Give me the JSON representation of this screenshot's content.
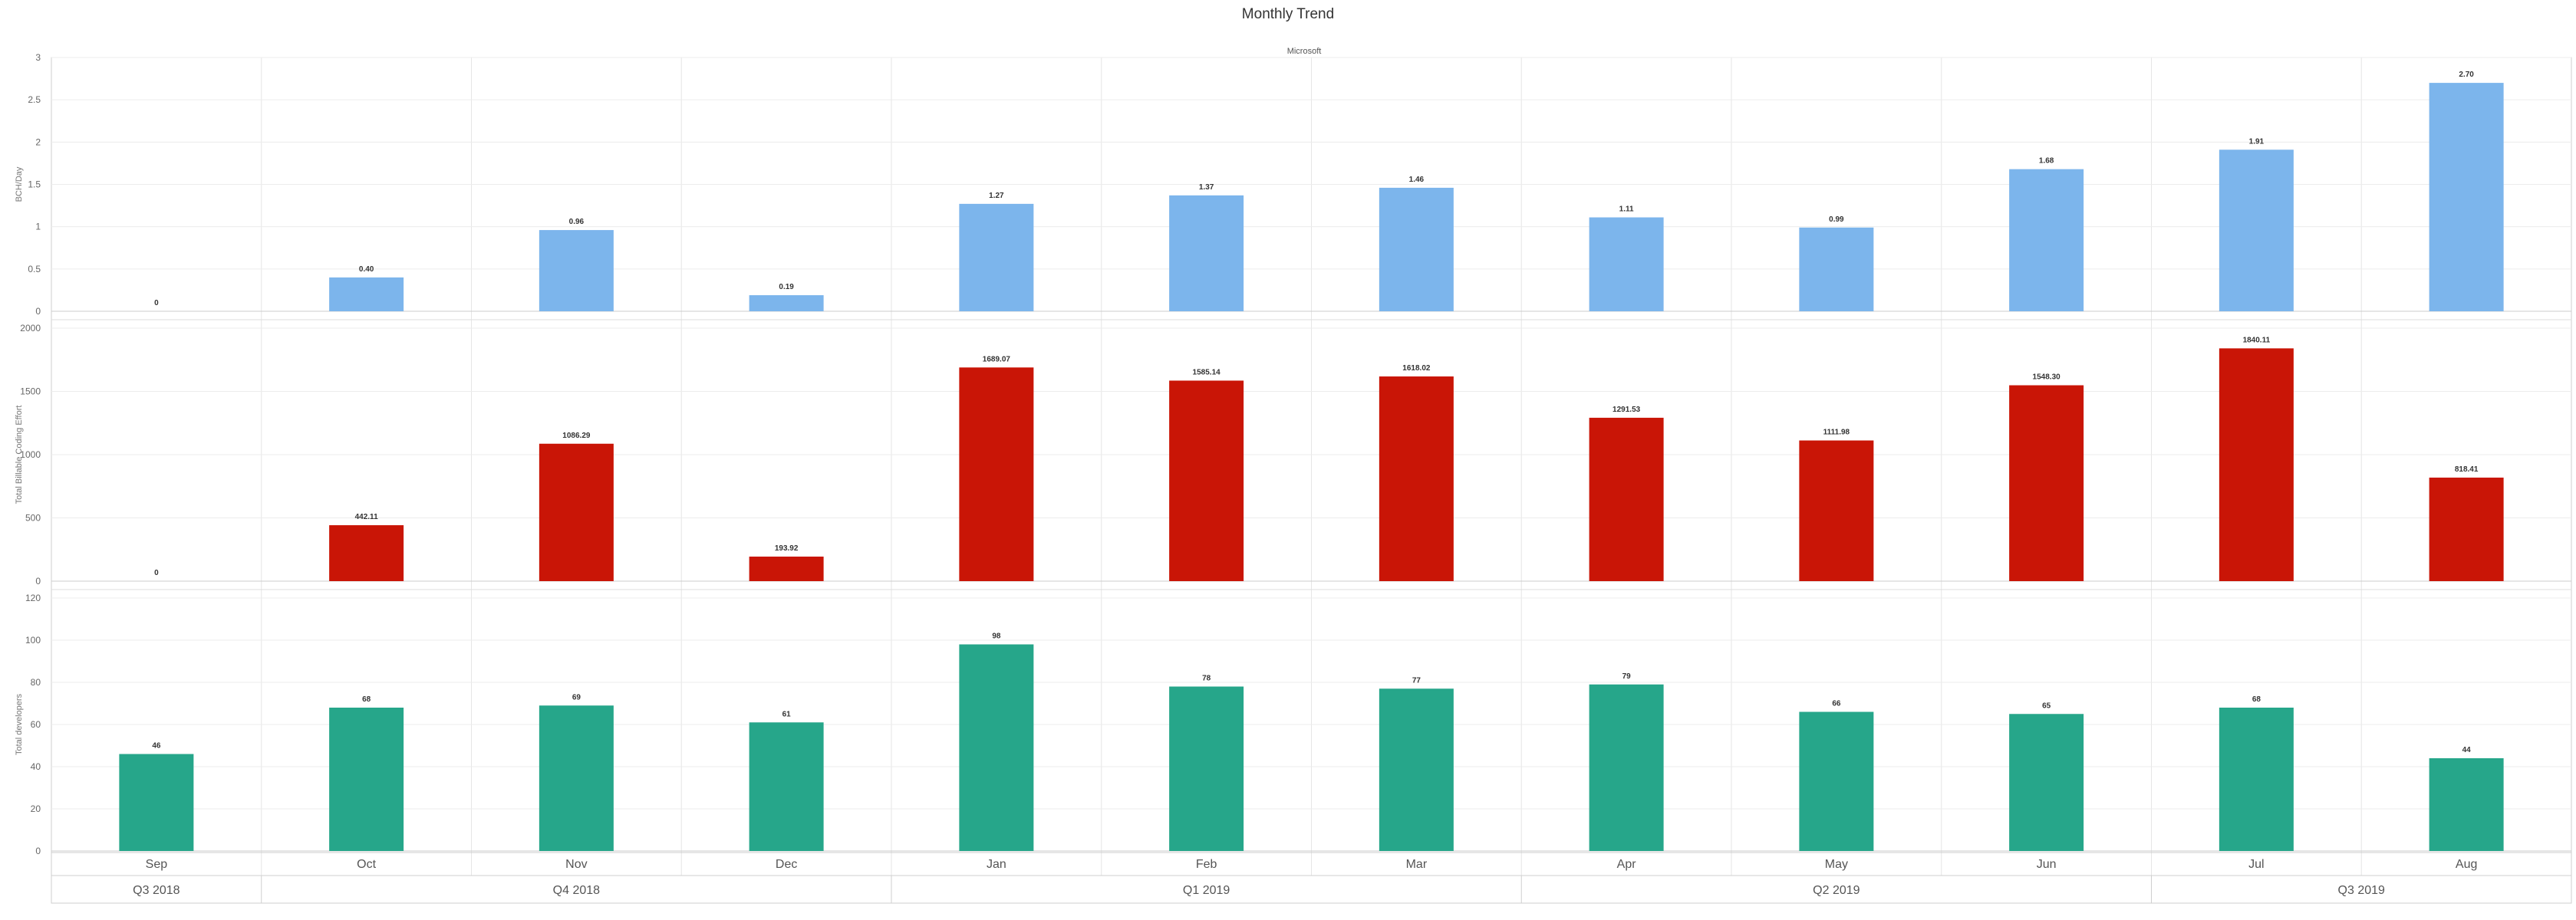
{
  "chart_data": {
    "type": "bar",
    "title": "Monthly Trend",
    "subtitle": "Microsoft",
    "categories": [
      "Sep",
      "Oct",
      "Nov",
      "Dec",
      "Jan",
      "Feb",
      "Mar",
      "Apr",
      "May",
      "Jun",
      "Jul",
      "Aug"
    ],
    "quarters": [
      {
        "label": "Q3 2018",
        "span": 1
      },
      {
        "label": "Q4 2018",
        "span": 3
      },
      {
        "label": "Q1 2019",
        "span": 3
      },
      {
        "label": "Q2 2019",
        "span": 3
      },
      {
        "label": "Q3 2019",
        "span": 2
      }
    ],
    "panels": [
      {
        "ylabel": "BCH/Day",
        "ylim": [
          0,
          3
        ],
        "ticks": [
          0,
          0.5,
          1,
          1.5,
          2,
          2.5,
          3
        ],
        "color": "#7cb5ec",
        "values": [
          0,
          0.4,
          0.96,
          0.19,
          1.27,
          1.37,
          1.46,
          1.11,
          0.99,
          1.68,
          1.91,
          2.7
        ],
        "labels": [
          "0",
          "0.40",
          "0.96",
          "0.19",
          "1.27",
          "1.37",
          "1.46",
          "1.11",
          "0.99",
          "1.68",
          "1.91",
          "2.70"
        ]
      },
      {
        "ylabel": "Total Billable Coding Effort",
        "ylim": [
          0,
          2000
        ],
        "ticks": [
          0,
          500,
          1000,
          1500,
          2000
        ],
        "color": "#c91506",
        "values": [
          0,
          442.11,
          1086.29,
          193.92,
          1689.07,
          1585.14,
          1618.02,
          1291.53,
          1111.98,
          1548.3,
          1840.11,
          818.41
        ],
        "labels": [
          "0",
          "442.11",
          "1086.29",
          "193.92",
          "1689.07",
          "1585.14",
          "1618.02",
          "1291.53",
          "1111.98",
          "1548.30",
          "1840.11",
          "818.41"
        ]
      },
      {
        "ylabel": "Total developers",
        "ylim": [
          0,
          120
        ],
        "ticks": [
          0,
          20,
          40,
          60,
          80,
          100,
          120
        ],
        "color": "#26a68a",
        "values": [
          46,
          68,
          69,
          61,
          98,
          78,
          77,
          79,
          66,
          65,
          68,
          44
        ],
        "labels": [
          "46",
          "68",
          "69",
          "61",
          "98",
          "78",
          "77",
          "79",
          "66",
          "65",
          "68",
          "44"
        ]
      }
    ],
    "grid": true,
    "legend": "none"
  }
}
